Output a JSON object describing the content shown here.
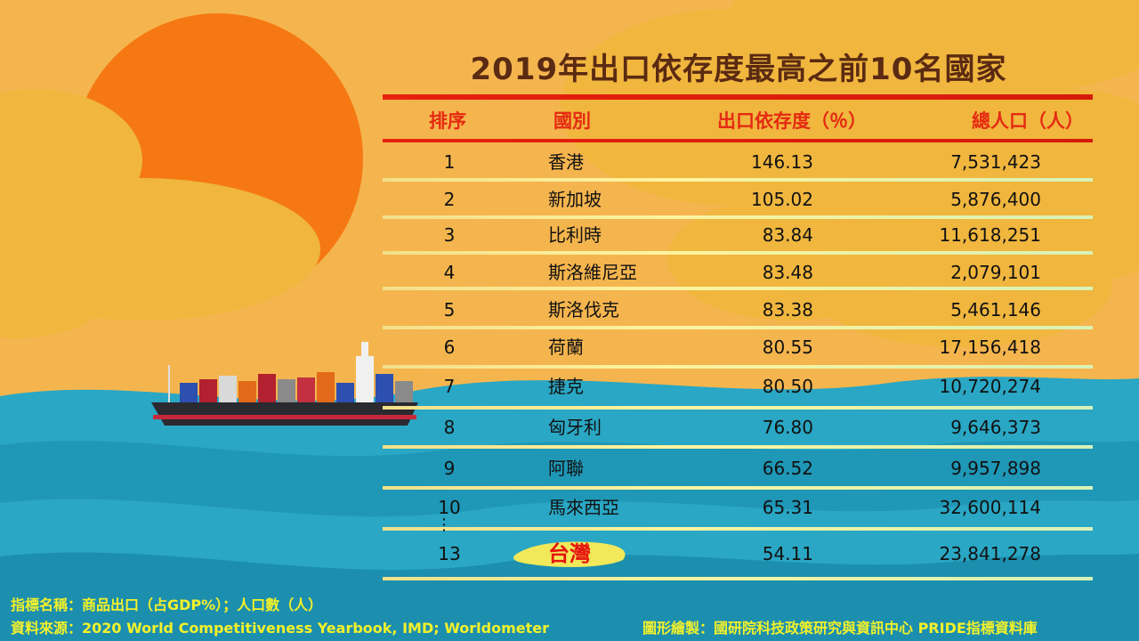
{
  "title": "2019年出口依存度最高之前10名國家",
  "headers": {
    "rank": "排序",
    "country": "國別",
    "ratio": "出口依存度（％）",
    "population": "總人口（人）"
  },
  "rows": [
    {
      "rank": "1",
      "country": "香港",
      "ratio": "146.13",
      "population": "7,531,423"
    },
    {
      "rank": "2",
      "country": "新加坡",
      "ratio": "105.02",
      "population": "5,876,400"
    },
    {
      "rank": "3",
      "country": "比利時",
      "ratio": "83.84",
      "population": "11,618,251"
    },
    {
      "rank": "4",
      "country": "斯洛維尼亞",
      "ratio": "83.48",
      "population": "2,079,101"
    },
    {
      "rank": "5",
      "country": "斯洛伐克",
      "ratio": "83.38",
      "population": "5,461,146"
    },
    {
      "rank": "6",
      "country": "荷蘭",
      "ratio": "80.55",
      "population": "17,156,418"
    },
    {
      "rank": "7",
      "country": "捷克",
      "ratio": "80.50",
      "population": "10,720,274"
    },
    {
      "rank": "8",
      "country": "匈牙利",
      "ratio": "76.80",
      "population": "9,646,373"
    },
    {
      "rank": "9",
      "country": "阿聯",
      "ratio": "66.52",
      "population": "9,957,898"
    },
    {
      "rank": "10",
      "country": "馬來西亞",
      "ratio": "65.31",
      "population": "32,600,114"
    }
  ],
  "ellipsis": "⋮",
  "taiwan": {
    "rank": "13",
    "country": "台灣",
    "ratio": "54.11",
    "population": "23,841,278"
  },
  "footer": {
    "indicator": "指標名稱：商品出口（占GDP%）；人口數（人）",
    "source": "資料來源：2020 World Competitiveness Yearbook, IMD; Worldometer",
    "credit": "圖形繪製：國研院科技政策研究與資訊中心 PRIDE指標資料庫"
  },
  "colors": {
    "title": "#5a2a12",
    "header": "#e52a12",
    "accent_line": "#e8200e",
    "footer": "#f3f12a",
    "sun": "#f57812",
    "sea": "#2aa7c4",
    "highlight": "#f1e85a"
  }
}
